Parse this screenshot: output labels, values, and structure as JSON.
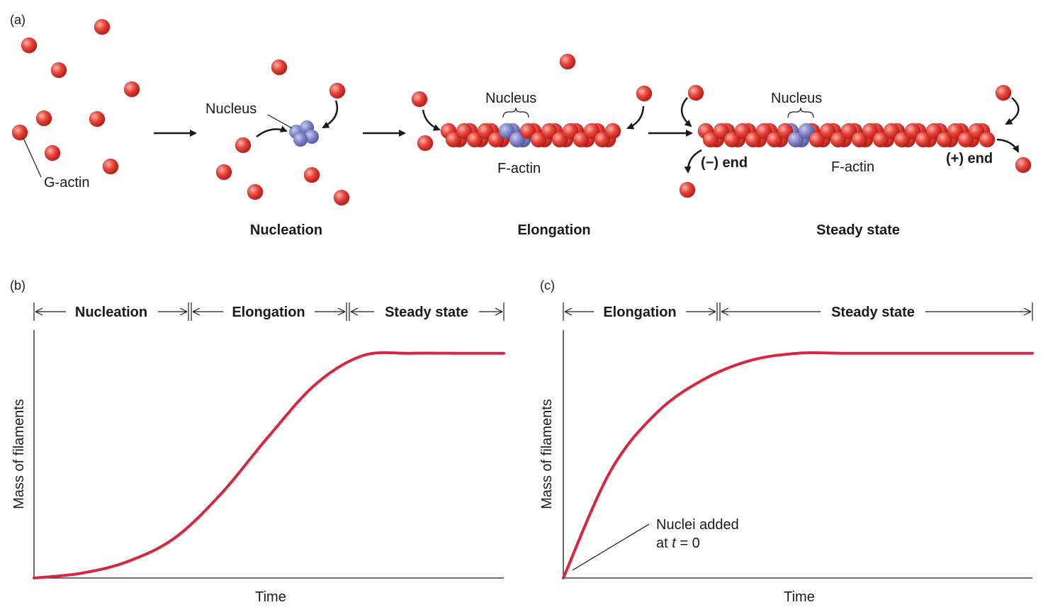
{
  "panel_a": {
    "panel_label": "(a)",
    "g_actin_label": "G-actin",
    "nucleus_label": "Nucleus",
    "f_actin_label": "F-actin",
    "minus_end_label": "(−) end",
    "plus_end_label": "(+) end",
    "stage_labels": [
      "Nucleation",
      "Elongation",
      "Steady state"
    ]
  },
  "panel_b": {
    "panel_label": "(b)",
    "phases": [
      "Nucleation",
      "Elongation",
      "Steady state"
    ],
    "ylabel": "Mass of filaments",
    "xlabel": "Time"
  },
  "panel_c": {
    "panel_label": "(c)",
    "phases": [
      "Elongation",
      "Steady state"
    ],
    "ylabel": "Mass of filaments",
    "xlabel": "Time",
    "annotation_line1": "Nuclei added",
    "annotation_line2_prefix": "at ",
    "annotation_t": "t",
    "annotation_line2_suffix": " = 0"
  },
  "colors": {
    "g_actin": "#e03a2f",
    "nucleus": "#7b7fc4",
    "curve": "#d7263d",
    "text": "#1a1a1a"
  },
  "chart_data": [
    {
      "type": "line",
      "title": "",
      "xlabel": "Time",
      "ylabel": "Mass of filaments",
      "phases": [
        "Nucleation",
        "Elongation",
        "Steady state"
      ],
      "x": [
        0,
        0.1,
        0.2,
        0.3,
        0.4,
        0.5,
        0.6,
        0.7,
        0.8,
        0.9,
        1.0
      ],
      "y": [
        0,
        0.02,
        0.07,
        0.17,
        0.36,
        0.6,
        0.82,
        0.94,
        0.95,
        0.95,
        0.95
      ],
      "ylim": [
        0,
        1
      ],
      "grid": false
    },
    {
      "type": "line",
      "title": "",
      "xlabel": "Time",
      "ylabel": "Mass of filaments",
      "phases": [
        "Elongation",
        "Steady state"
      ],
      "x": [
        0,
        0.1,
        0.2,
        0.3,
        0.4,
        0.5,
        0.6,
        0.7,
        0.8,
        0.9,
        1.0
      ],
      "y": [
        0,
        0.45,
        0.7,
        0.84,
        0.92,
        0.95,
        0.95,
        0.95,
        0.95,
        0.95,
        0.95
      ],
      "ylim": [
        0,
        1
      ],
      "grid": false
    }
  ]
}
